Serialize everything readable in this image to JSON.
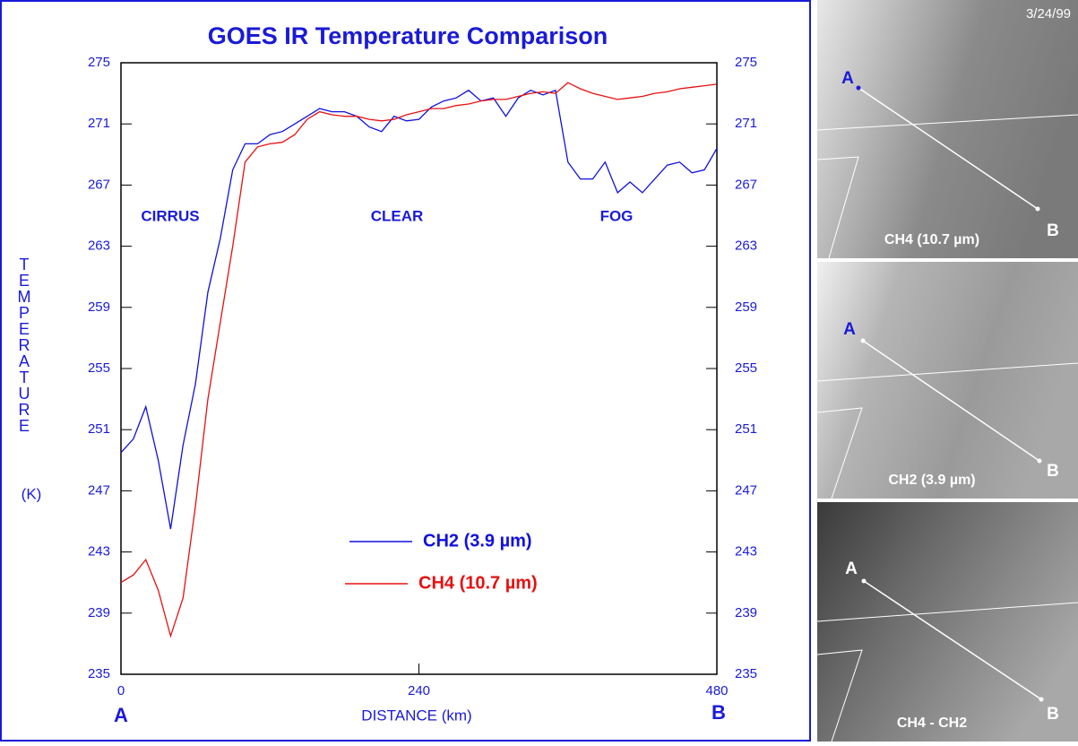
{
  "chart_data": {
    "type": "line",
    "title": "GOES IR Temperature Comparison",
    "x_label": "DISTANCE (km)",
    "y_label": "TEMPERATURE",
    "y_unit": "(K)",
    "start_label": "A",
    "end_label": "B",
    "annotations": [
      "CIRRUS",
      "CLEAR",
      "FOG"
    ],
    "x": [
      0,
      10,
      20,
      30,
      40,
      50,
      60,
      70,
      80,
      90,
      100,
      110,
      120,
      130,
      140,
      150,
      160,
      170,
      180,
      190,
      200,
      210,
      220,
      230,
      240,
      250,
      260,
      270,
      280,
      290,
      300,
      310,
      320,
      330,
      340,
      350,
      360,
      370,
      380,
      390,
      400,
      410,
      420,
      430,
      440,
      450,
      460,
      470,
      480
    ],
    "series": [
      {
        "name": "CH2 (3.9 µm)",
        "color": "#1010e0",
        "values": [
          249.5,
          250.4,
          252.5,
          249,
          244.5,
          250,
          254,
          260,
          263.5,
          268,
          269.7,
          269.7,
          270.3,
          270.5,
          271,
          271.5,
          272,
          271.8,
          271.8,
          271.5,
          270.8,
          270.5,
          271.5,
          271.2,
          271.3,
          272.1,
          272.5,
          272.7,
          273.2,
          272.5,
          272.7,
          271.5,
          272.7,
          273.2,
          272.9,
          273.2,
          268.5,
          267.4,
          267.4,
          268.5,
          266.5,
          267.2,
          266.5,
          267.4,
          268.3,
          268.5,
          267.8,
          268,
          269.4
        ]
      },
      {
        "name": "CH4 (10.7 µm)",
        "color": "#e81010",
        "values": [
          241,
          241.5,
          242.5,
          240.5,
          237.5,
          240,
          246,
          253,
          258,
          263,
          268.5,
          269.5,
          269.7,
          269.8,
          270.3,
          271.3,
          271.8,
          271.6,
          271.5,
          271.5,
          271.3,
          271.2,
          271.3,
          271.6,
          271.8,
          272,
          272,
          272.2,
          272.3,
          272.5,
          272.6,
          272.6,
          272.8,
          273,
          273.1,
          273,
          273.7,
          273.3,
          273,
          272.8,
          272.6,
          272.7,
          272.8,
          273,
          273.1,
          273.3,
          273.4,
          273.5,
          273.6
        ]
      }
    ],
    "xlim": [
      0,
      480
    ],
    "xticks": [
      0,
      240,
      480
    ],
    "ylim": [
      235,
      275
    ],
    "yticks": [
      235,
      239,
      243,
      247,
      251,
      255,
      259,
      263,
      267,
      271,
      275
    ],
    "y2lim": [
      235,
      275
    ],
    "y2ticks": [
      235,
      239,
      243,
      247,
      251,
      255,
      259,
      263,
      267,
      271,
      275
    ]
  },
  "images": [
    {
      "caption": "CH4 (10.7 µm)",
      "date": "3/24/99",
      "a": "A",
      "b": "B"
    },
    {
      "caption": "CH2 (3.9 µm)",
      "a": "A",
      "b": "B"
    },
    {
      "caption": "CH4 - CH2",
      "a": "A",
      "b": "B"
    }
  ]
}
